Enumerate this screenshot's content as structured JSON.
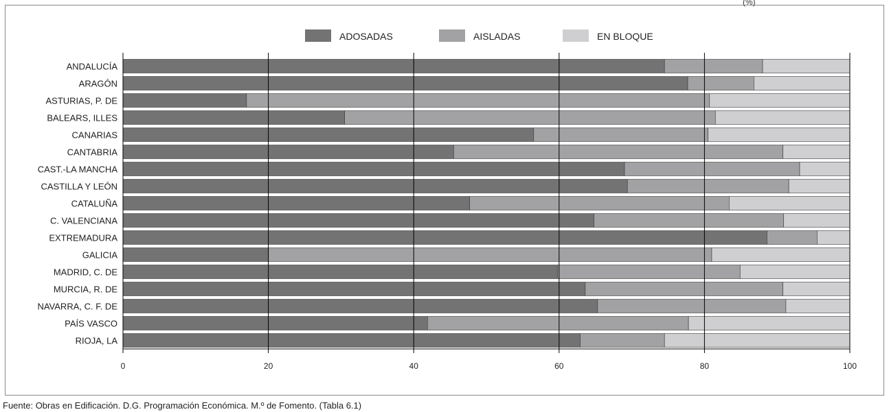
{
  "top_note": "(%)",
  "source": "Fuente: Obras en Edificación. D.G. Programación Económica. M.º de Fomento. (Tabla 6.1)",
  "colors": {
    "ADOSADAS": "#737373",
    "AISLADAS": "#a2a2a4",
    "EN BLOQUE": "#cfcfd1",
    "grid": "#000000"
  },
  "chart_data": {
    "type": "bar",
    "orientation": "horizontal",
    "stacked": true,
    "categories": [
      "ANDALUCÍA",
      "ARAGÓN",
      "ASTURIAS, P. DE",
      "BALEARS, ILLES",
      "CANARIAS",
      "CANTABRIA",
      "CAST.-LA MANCHA",
      "CASTILLA Y LEÓN",
      "CATALUÑA",
      "C. VALENCIANA",
      "EXTREMADURA",
      "GALICIA",
      "MADRID, C. DE",
      "MURCIA, R. DE",
      "NAVARRA, C. F. DE",
      "PAÍS VASCO",
      "RIOJA, LA"
    ],
    "series": [
      {
        "name": "ADOSADAS",
        "values": [
          74.5,
          77.7,
          17.0,
          30.5,
          56.5,
          45.5,
          69.0,
          69.4,
          47.7,
          64.8,
          88.6,
          20.0,
          59.8,
          63.6,
          65.3,
          41.9,
          62.9
        ]
      },
      {
        "name": "AISLADAS",
        "values": [
          13.5,
          9.1,
          63.7,
          51.0,
          24.0,
          45.3,
          24.1,
          22.2,
          35.7,
          26.1,
          6.9,
          61.0,
          25.1,
          27.2,
          25.9,
          35.9,
          11.6
        ]
      },
      {
        "name": "EN BLOQUE",
        "values": [
          12.0,
          13.2,
          19.3,
          18.5,
          19.5,
          9.2,
          6.9,
          8.4,
          16.6,
          9.1,
          4.5,
          19.0,
          15.1,
          9.2,
          8.8,
          22.2,
          25.5
        ]
      }
    ],
    "xticks": [
      0,
      20,
      40,
      60,
      80,
      100
    ],
    "xlim": [
      0,
      100
    ],
    "grid": true,
    "legend_position": "top-center"
  }
}
